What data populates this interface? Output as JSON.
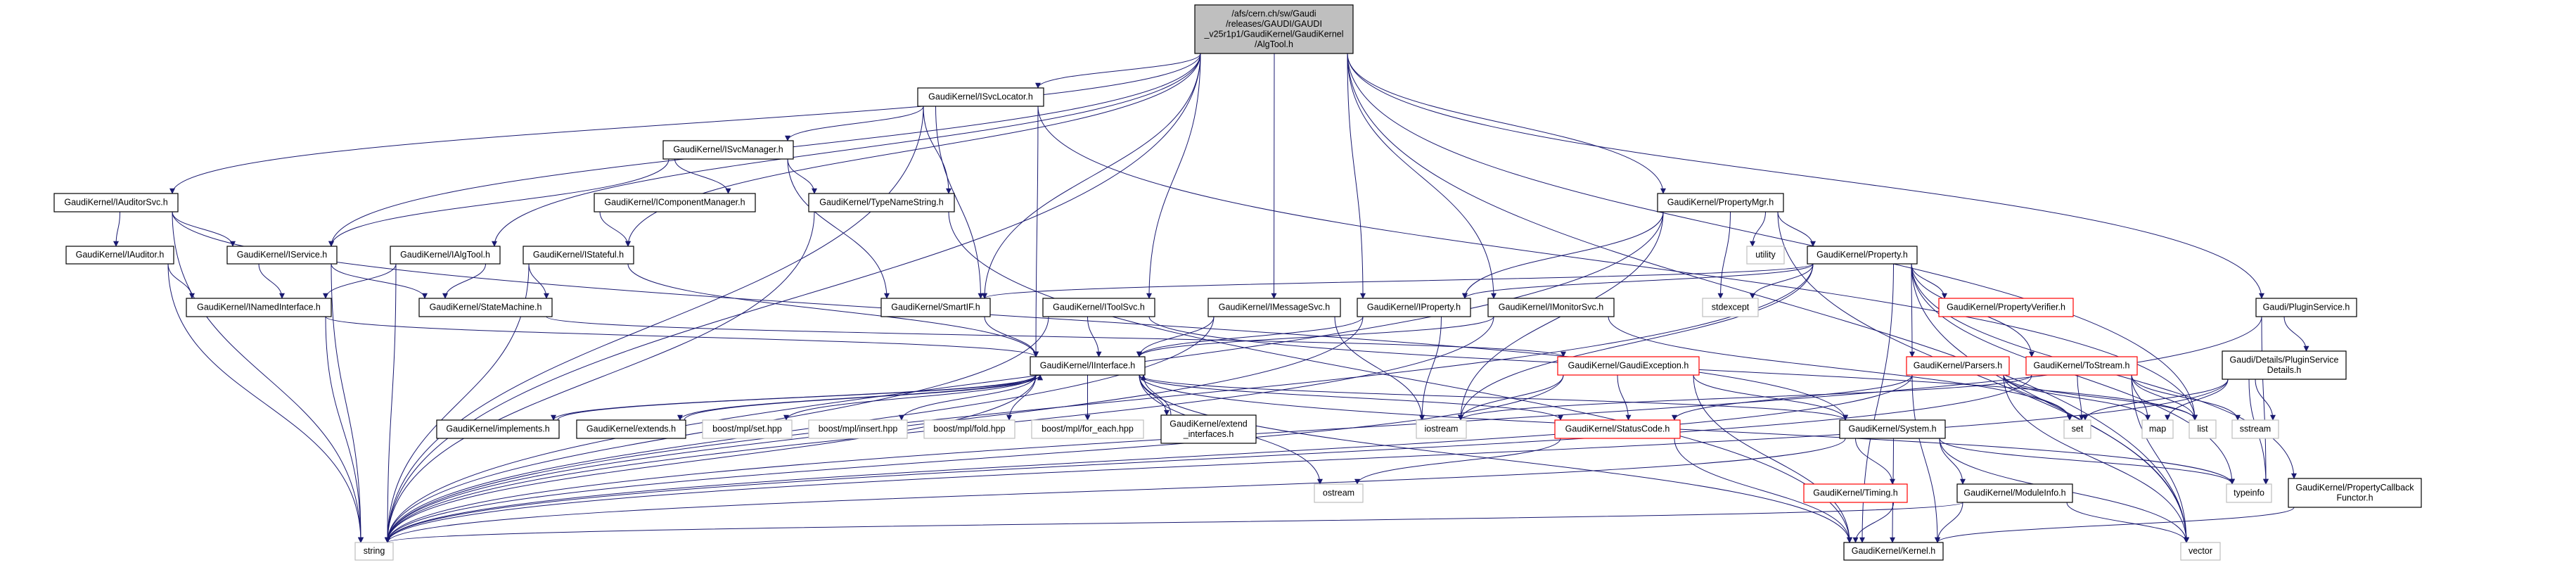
{
  "graph": {
    "type": "include-dependency-graph",
    "colors": {
      "edge": "#191970",
      "root_fill": "#bfbfbf",
      "documented_border": "#000000",
      "truncated_border": "#ff0000",
      "external_border": "#bfbfbf"
    },
    "nodes": [
      {
        "id": "root",
        "lines": [
          "/afs/cern.ch/sw/Gaudi",
          "/releases/GAUDI/GAUDI",
          "_v25r1p1/GaudiKernel/GaudiKernel",
          "/AlgTool.h"
        ],
        "kind": "root"
      },
      {
        "id": "ISvcLocator",
        "lines": [
          "GaudiKernel/ISvcLocator.h"
        ],
        "kind": "doc"
      },
      {
        "id": "ISvcManager",
        "lines": [
          "GaudiKernel/ISvcManager.h"
        ],
        "kind": "doc"
      },
      {
        "id": "IAuditorSvc",
        "lines": [
          "GaudiKernel/IAuditorSvc.h"
        ],
        "kind": "doc"
      },
      {
        "id": "IComponentManager",
        "lines": [
          "GaudiKernel/IComponentManager.h"
        ],
        "kind": "doc"
      },
      {
        "id": "TypeNameString",
        "lines": [
          "GaudiKernel/TypeNameString.h"
        ],
        "kind": "doc"
      },
      {
        "id": "PropertyMgr",
        "lines": [
          "GaudiKernel/PropertyMgr.h"
        ],
        "kind": "doc"
      },
      {
        "id": "IAuditor",
        "lines": [
          "GaudiKernel/IAuditor.h"
        ],
        "kind": "doc"
      },
      {
        "id": "IService",
        "lines": [
          "GaudiKernel/IService.h"
        ],
        "kind": "doc"
      },
      {
        "id": "IAlgTool",
        "lines": [
          "GaudiKernel/IAlgTool.h"
        ],
        "kind": "doc"
      },
      {
        "id": "IStateful",
        "lines": [
          "GaudiKernel/IStateful.h"
        ],
        "kind": "doc"
      },
      {
        "id": "utility",
        "lines": [
          "utility"
        ],
        "kind": "ext"
      },
      {
        "id": "Property",
        "lines": [
          "GaudiKernel/Property.h"
        ],
        "kind": "doc"
      },
      {
        "id": "INamedInterface",
        "lines": [
          "GaudiKernel/INamedInterface.h"
        ],
        "kind": "doc"
      },
      {
        "id": "StateMachine",
        "lines": [
          "GaudiKernel/StateMachine.h"
        ],
        "kind": "doc"
      },
      {
        "id": "SmartIF",
        "lines": [
          "GaudiKernel/SmartIF.h"
        ],
        "kind": "doc"
      },
      {
        "id": "IToolSvc",
        "lines": [
          "GaudiKernel/IToolSvc.h"
        ],
        "kind": "doc"
      },
      {
        "id": "IMessageSvc",
        "lines": [
          "GaudiKernel/IMessageSvc.h"
        ],
        "kind": "doc"
      },
      {
        "id": "IProperty",
        "lines": [
          "GaudiKernel/IProperty.h"
        ],
        "kind": "doc"
      },
      {
        "id": "IMonitorSvc",
        "lines": [
          "GaudiKernel/IMonitorSvc.h"
        ],
        "kind": "doc"
      },
      {
        "id": "stdexcept",
        "lines": [
          "stdexcept"
        ],
        "kind": "ext"
      },
      {
        "id": "PropertyVerifier",
        "lines": [
          "GaudiKernel/PropertyVerifier.h"
        ],
        "kind": "trunc"
      },
      {
        "id": "PluginService",
        "lines": [
          "Gaudi/PluginService.h"
        ],
        "kind": "doc"
      },
      {
        "id": "IInterface",
        "lines": [
          "GaudiKernel/IInterface.h"
        ],
        "kind": "doc"
      },
      {
        "id": "GaudiException",
        "lines": [
          "GaudiKernel/GaudiException.h"
        ],
        "kind": "trunc"
      },
      {
        "id": "Parsers",
        "lines": [
          "GaudiKernel/Parsers.h"
        ],
        "kind": "trunc"
      },
      {
        "id": "ToStream",
        "lines": [
          "GaudiKernel/ToStream.h"
        ],
        "kind": "trunc"
      },
      {
        "id": "PluginServiceDetails",
        "lines": [
          "Gaudi/Details/PluginService",
          "Details.h"
        ],
        "kind": "doc"
      },
      {
        "id": "implements",
        "lines": [
          "GaudiKernel/implements.h"
        ],
        "kind": "doc"
      },
      {
        "id": "extends",
        "lines": [
          "GaudiKernel/extends.h"
        ],
        "kind": "doc"
      },
      {
        "id": "mplset",
        "lines": [
          "boost/mpl/set.hpp"
        ],
        "kind": "ext"
      },
      {
        "id": "mplinsert",
        "lines": [
          "boost/mpl/insert.hpp"
        ],
        "kind": "ext"
      },
      {
        "id": "mplfold",
        "lines": [
          "boost/mpl/fold.hpp"
        ],
        "kind": "ext"
      },
      {
        "id": "mplforeach",
        "lines": [
          "boost/mpl/for_each.hpp"
        ],
        "kind": "ext"
      },
      {
        "id": "extend_interfaces",
        "lines": [
          "GaudiKernel/extend",
          "_interfaces.h"
        ],
        "kind": "doc"
      },
      {
        "id": "iostream",
        "lines": [
          "iostream"
        ],
        "kind": "ext"
      },
      {
        "id": "StatusCode",
        "lines": [
          "GaudiKernel/StatusCode.h"
        ],
        "kind": "trunc"
      },
      {
        "id": "System",
        "lines": [
          "GaudiKernel/System.h"
        ],
        "kind": "doc"
      },
      {
        "id": "set",
        "lines": [
          "set"
        ],
        "kind": "ext"
      },
      {
        "id": "map",
        "lines": [
          "map"
        ],
        "kind": "ext"
      },
      {
        "id": "list",
        "lines": [
          "list"
        ],
        "kind": "ext"
      },
      {
        "id": "sstream",
        "lines": [
          "sstream"
        ],
        "kind": "ext"
      },
      {
        "id": "ostream",
        "lines": [
          "ostream"
        ],
        "kind": "ext"
      },
      {
        "id": "Timing",
        "lines": [
          "GaudiKernel/Timing.h"
        ],
        "kind": "trunc"
      },
      {
        "id": "ModuleInfo",
        "lines": [
          "GaudiKernel/ModuleInfo.h"
        ],
        "kind": "doc"
      },
      {
        "id": "typeinfo",
        "lines": [
          "typeinfo"
        ],
        "kind": "ext"
      },
      {
        "id": "PropertyCallbackFunctor",
        "lines": [
          "GaudiKernel/PropertyCallback",
          "Functor.h"
        ],
        "kind": "doc"
      },
      {
        "id": "string",
        "lines": [
          "string"
        ],
        "kind": "ext"
      },
      {
        "id": "Kernel",
        "lines": [
          "GaudiKernel/Kernel.h"
        ],
        "kind": "doc"
      },
      {
        "id": "vector",
        "lines": [
          "vector"
        ],
        "kind": "ext"
      }
    ],
    "edges": [
      [
        "root",
        "IAuditorSvc"
      ],
      [
        "root",
        "string"
      ],
      [
        "root",
        "IService"
      ],
      [
        "root",
        "IAlgTool"
      ],
      [
        "root",
        "IStateful"
      ],
      [
        "root",
        "ISvcLocator"
      ],
      [
        "root",
        "IToolSvc"
      ],
      [
        "root",
        "IMessageSvc"
      ],
      [
        "root",
        "IProperty"
      ],
      [
        "root",
        "IMonitorSvc"
      ],
      [
        "root",
        "PropertyMgr"
      ],
      [
        "root",
        "list"
      ],
      [
        "root",
        "vector"
      ],
      [
        "root",
        "PluginService"
      ],
      [
        "root",
        "SmartIF"
      ],
      [
        "ISvcLocator",
        "ISvcManager"
      ],
      [
        "ISvcLocator",
        "TypeNameString"
      ],
      [
        "ISvcLocator",
        "SmartIF"
      ],
      [
        "ISvcLocator",
        "IInterface"
      ],
      [
        "ISvcLocator",
        "string"
      ],
      [
        "ISvcLocator",
        "list"
      ],
      [
        "ISvcManager",
        "IComponentManager"
      ],
      [
        "ISvcManager",
        "TypeNameString"
      ],
      [
        "ISvcManager",
        "SmartIF"
      ],
      [
        "ISvcManager",
        "IService"
      ],
      [
        "IComponentManager",
        "IStateful"
      ],
      [
        "TypeNameString",
        "string"
      ],
      [
        "TypeNameString",
        "Kernel"
      ],
      [
        "IAuditorSvc",
        "IAuditor"
      ],
      [
        "IAuditorSvc",
        "IService"
      ],
      [
        "IAuditorSvc",
        "string"
      ],
      [
        "IAuditorSvc",
        "System"
      ],
      [
        "IAuditor",
        "INamedInterface"
      ],
      [
        "IAuditor",
        "string"
      ],
      [
        "IService",
        "INamedInterface"
      ],
      [
        "IService",
        "StateMachine"
      ],
      [
        "IService",
        "string"
      ],
      [
        "IAlgTool",
        "INamedInterface"
      ],
      [
        "IAlgTool",
        "StateMachine"
      ],
      [
        "IAlgTool",
        "string"
      ],
      [
        "IStateful",
        "StateMachine"
      ],
      [
        "IStateful",
        "IInterface"
      ],
      [
        "IStateful",
        "string"
      ],
      [
        "INamedInterface",
        "IInterface"
      ],
      [
        "INamedInterface",
        "string"
      ],
      [
        "StateMachine",
        "GaudiException"
      ],
      [
        "SmartIF",
        "IInterface"
      ],
      [
        "IToolSvc",
        "IInterface"
      ],
      [
        "IToolSvc",
        "string"
      ],
      [
        "IToolSvc",
        "list"
      ],
      [
        "IMessageSvc",
        "IInterface"
      ],
      [
        "IMessageSvc",
        "iostream"
      ],
      [
        "IMessageSvc",
        "string"
      ],
      [
        "IProperty",
        "IInterface"
      ],
      [
        "IProperty",
        "iostream"
      ],
      [
        "IProperty",
        "string"
      ],
      [
        "IMonitorSvc",
        "IInterface"
      ],
      [
        "IMonitorSvc",
        "string"
      ],
      [
        "IMonitorSvc",
        "set"
      ],
      [
        "PropertyMgr",
        "IProperty"
      ],
      [
        "PropertyMgr",
        "iostream"
      ],
      [
        "PropertyMgr",
        "stdexcept"
      ],
      [
        "PropertyMgr",
        "utility"
      ],
      [
        "PropertyMgr",
        "Property"
      ],
      [
        "PropertyMgr",
        "vector"
      ],
      [
        "PropertyMgr",
        "string"
      ],
      [
        "Property",
        "SmartIF"
      ],
      [
        "Property",
        "IProperty"
      ],
      [
        "Property",
        "stdexcept"
      ],
      [
        "Property",
        "PropertyVerifier"
      ],
      [
        "Property",
        "Parsers"
      ],
      [
        "Property",
        "ToStream"
      ],
      [
        "Property",
        "PropertyCallbackFunctor"
      ],
      [
        "Property",
        "typeinfo"
      ],
      [
        "Property",
        "string"
      ],
      [
        "Property",
        "iostream"
      ],
      [
        "Property",
        "Kernel"
      ],
      [
        "Property",
        "vector"
      ],
      [
        "IInterface",
        "implements"
      ],
      [
        "IInterface",
        "extends"
      ],
      [
        "IInterface",
        "mplset"
      ],
      [
        "IInterface",
        "mplinsert"
      ],
      [
        "IInterface",
        "mplfold"
      ],
      [
        "IInterface",
        "mplforeach"
      ],
      [
        "IInterface",
        "extend_interfaces"
      ],
      [
        "IInterface",
        "ostream"
      ],
      [
        "IInterface",
        "StatusCode"
      ],
      [
        "IInterface",
        "System"
      ],
      [
        "IInterface",
        "Kernel"
      ],
      [
        "IInterface",
        "string"
      ],
      [
        "IInterface",
        "typeinfo"
      ],
      [
        "implements",
        "IInterface"
      ],
      [
        "extends",
        "IInterface"
      ],
      [
        "extend_interfaces",
        "IInterface"
      ],
      [
        "GaudiException",
        "StatusCode"
      ],
      [
        "GaudiException",
        "iostream"
      ],
      [
        "GaudiException",
        "string"
      ],
      [
        "GaudiException",
        "System"
      ],
      [
        "GaudiException",
        "Kernel"
      ],
      [
        "StatusCode",
        "ostream"
      ],
      [
        "StatusCode",
        "Kernel"
      ],
      [
        "System",
        "Timing"
      ],
      [
        "System",
        "ModuleInfo"
      ],
      [
        "System",
        "Kernel"
      ],
      [
        "System",
        "string"
      ],
      [
        "System",
        "typeinfo"
      ],
      [
        "System",
        "vector"
      ],
      [
        "Timing",
        "Kernel"
      ],
      [
        "ModuleInfo",
        "Kernel"
      ],
      [
        "ModuleInfo",
        "vector"
      ],
      [
        "ModuleInfo",
        "string"
      ],
      [
        "Parsers",
        "set"
      ],
      [
        "Parsers",
        "map"
      ],
      [
        "Parsers",
        "list"
      ],
      [
        "Parsers",
        "vector"
      ],
      [
        "Parsers",
        "string"
      ],
      [
        "Parsers",
        "StatusCode"
      ],
      [
        "Parsers",
        "Kernel"
      ],
      [
        "ToStream",
        "set"
      ],
      [
        "ToStream",
        "map"
      ],
      [
        "ToStream",
        "list"
      ],
      [
        "ToStream",
        "sstream"
      ],
      [
        "ToStream",
        "vector"
      ],
      [
        "ToStream",
        "string"
      ],
      [
        "ToStream",
        "iostream"
      ],
      [
        "PluginService",
        "PluginServiceDetails"
      ],
      [
        "PluginService",
        "typeinfo"
      ],
      [
        "PluginService",
        "string"
      ],
      [
        "PluginServiceDetails",
        "set"
      ],
      [
        "PluginServiceDetails",
        "map"
      ],
      [
        "PluginServiceDetails",
        "sstream"
      ],
      [
        "PluginServiceDetails",
        "typeinfo"
      ],
      [
        "PluginServiceDetails",
        "string"
      ],
      [
        "PropertyCallbackFunctor",
        "Kernel"
      ]
    ]
  }
}
